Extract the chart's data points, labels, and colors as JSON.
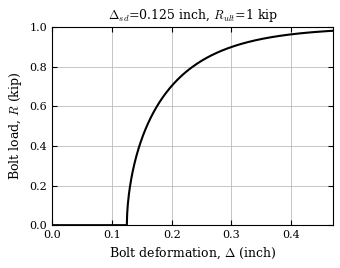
{
  "delta_sd": 0.125,
  "R_ult": 1.0,
  "x_min": 0.0,
  "x_max": 0.47,
  "y_min": 0.0,
  "y_max": 1.0,
  "x_ticks": [
    0.0,
    0.1,
    0.2,
    0.3,
    0.4
  ],
  "y_ticks": [
    0.0,
    0.2,
    0.4,
    0.6,
    0.8,
    1.0
  ],
  "xlabel": "Bolt deformation, $\\Delta$ (inch)",
  "ylabel": "Bolt load, $R$ (kip)",
  "title": "$\\Delta_{sd}$=0.125 inch, $R_{ult}$=1 kip",
  "line_color": "#000000",
  "line_width": 1.5,
  "grid_color": "#bbbbbb",
  "background_color": "#ffffff",
  "fig_width": 3.4,
  "fig_height": 2.68,
  "dpi": 100,
  "formula_exponent": 0.55,
  "formula_decay": 10.0
}
